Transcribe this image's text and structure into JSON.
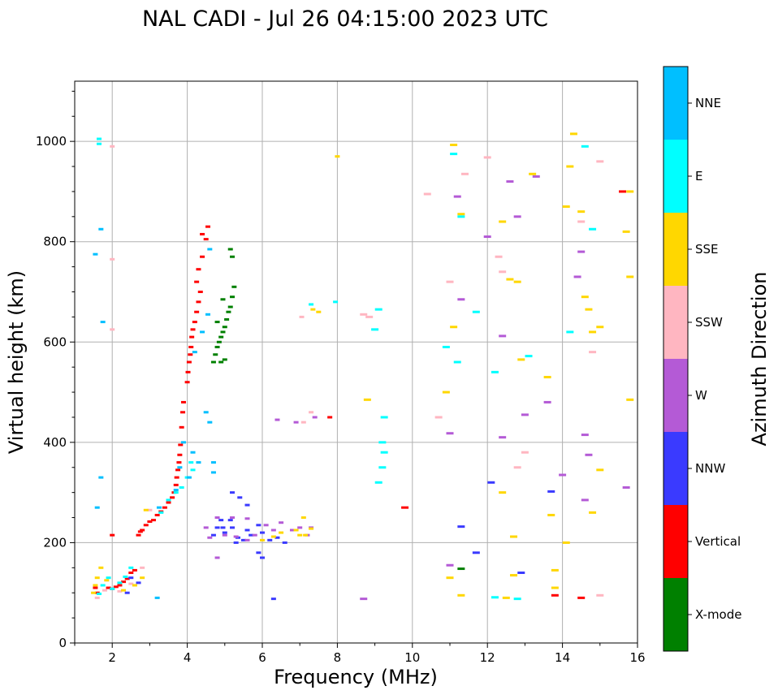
{
  "chart_data": {
    "type": "scatter",
    "title": "NAL CADI - Jul 26 04:15:00 2023 UTC",
    "xlabel": "Frequency (MHz)",
    "ylabel": "Virtual height (km)",
    "xlim": [
      1,
      16
    ],
    "ylim": [
      0,
      1120
    ],
    "xticks": [
      "2",
      "4",
      "6",
      "8",
      "10",
      "12",
      "14",
      "16"
    ],
    "yticks": [
      "0",
      "200",
      "400",
      "600",
      "800",
      "1000"
    ],
    "grid": true,
    "colorbar": {
      "label": "Azimuth Direction",
      "position": "right",
      "categories": [
        {
          "name": "X-mode",
          "color": "#008000"
        },
        {
          "name": "Vertical",
          "color": "#ff0000"
        },
        {
          "name": "NNW",
          "color": "#3a3aff"
        },
        {
          "name": "W",
          "color": "#b45ad6"
        },
        {
          "name": "SSW",
          "color": "#ffb6c1"
        },
        {
          "name": "SSE",
          "color": "#ffd700"
        },
        {
          "name": "E",
          "color": "#00ffff"
        },
        {
          "name": "NNE",
          "color": "#00bfff"
        }
      ]
    },
    "series": [
      {
        "name": "Vertical",
        "points": [
          [
            1.55,
            110
          ],
          [
            1.6,
            100
          ],
          [
            1.9,
            110
          ],
          [
            2.0,
            108
          ],
          [
            2.1,
            112
          ],
          [
            2.2,
            115
          ],
          [
            2.3,
            122
          ],
          [
            2.4,
            128
          ],
          [
            2.5,
            140
          ],
          [
            2.6,
            145
          ],
          [
            2.7,
            215
          ],
          [
            2.75,
            222
          ],
          [
            2.8,
            225
          ],
          [
            2.9,
            235
          ],
          [
            3.0,
            242
          ],
          [
            3.1,
            245
          ],
          [
            3.2,
            255
          ],
          [
            3.3,
            262
          ],
          [
            3.4,
            270
          ],
          [
            3.5,
            280
          ],
          [
            3.6,
            290
          ],
          [
            3.65,
            300
          ],
          [
            3.7,
            315
          ],
          [
            3.72,
            330
          ],
          [
            3.75,
            345
          ],
          [
            3.78,
            360
          ],
          [
            3.8,
            375
          ],
          [
            3.82,
            395
          ],
          [
            3.85,
            430
          ],
          [
            3.88,
            460
          ],
          [
            3.9,
            480
          ],
          [
            4.0,
            520
          ],
          [
            4.02,
            540
          ],
          [
            4.05,
            560
          ],
          [
            4.08,
            575
          ],
          [
            4.1,
            590
          ],
          [
            4.12,
            610
          ],
          [
            4.15,
            625
          ],
          [
            4.2,
            640
          ],
          [
            4.25,
            660
          ],
          [
            4.3,
            680
          ],
          [
            4.35,
            700
          ],
          [
            4.25,
            720
          ],
          [
            4.3,
            745
          ],
          [
            4.4,
            770
          ],
          [
            4.5,
            805
          ],
          [
            4.4,
            815
          ],
          [
            4.55,
            830
          ],
          [
            2.0,
            215
          ],
          [
            7.8,
            450
          ],
          [
            9.8,
            270
          ],
          [
            15.6,
            900
          ],
          [
            14.5,
            90
          ],
          [
            13.8,
            95
          ]
        ]
      },
      {
        "name": "X-mode",
        "points": [
          [
            4.7,
            560
          ],
          [
            4.75,
            575
          ],
          [
            4.8,
            590
          ],
          [
            4.85,
            600
          ],
          [
            4.9,
            610
          ],
          [
            4.95,
            620
          ],
          [
            5.0,
            630
          ],
          [
            5.05,
            645
          ],
          [
            5.1,
            660
          ],
          [
            5.15,
            670
          ],
          [
            5.2,
            690
          ],
          [
            5.25,
            710
          ],
          [
            5.2,
            770
          ],
          [
            5.15,
            785
          ],
          [
            4.95,
            685
          ],
          [
            4.8,
            640
          ],
          [
            5.0,
            565
          ],
          [
            4.9,
            560
          ],
          [
            11.3,
            148
          ]
        ]
      },
      {
        "name": "NNW",
        "points": [
          [
            4.7,
            215
          ],
          [
            4.8,
            230
          ],
          [
            4.9,
            245
          ],
          [
            5.0,
            220
          ],
          [
            5.2,
            230
          ],
          [
            5.35,
            210
          ],
          [
            5.5,
            205
          ],
          [
            5.6,
            225
          ],
          [
            5.7,
            215
          ],
          [
            5.9,
            235
          ],
          [
            6.0,
            220
          ],
          [
            6.2,
            205
          ],
          [
            6.4,
            210
          ],
          [
            6.6,
            200
          ],
          [
            5.2,
            300
          ],
          [
            5.4,
            290
          ],
          [
            5.6,
            275
          ],
          [
            5.9,
            180
          ],
          [
            6.0,
            170
          ],
          [
            5.15,
            245
          ],
          [
            4.95,
            230
          ],
          [
            5.3,
            200
          ],
          [
            6.3,
            88
          ],
          [
            11.3,
            232
          ],
          [
            11.7,
            180
          ],
          [
            12.1,
            320
          ],
          [
            12.9,
            140
          ],
          [
            13.7,
            302
          ],
          [
            2.4,
            100
          ],
          [
            2.7,
            120
          ],
          [
            2.5,
            130
          ]
        ]
      },
      {
        "name": "W",
        "points": [
          [
            4.5,
            230
          ],
          [
            4.6,
            210
          ],
          [
            4.8,
            170
          ],
          [
            5.0,
            215
          ],
          [
            5.3,
            212
          ],
          [
            5.6,
            205
          ],
          [
            5.8,
            215
          ],
          [
            6.1,
            235
          ],
          [
            6.3,
            225
          ],
          [
            6.5,
            240
          ],
          [
            6.8,
            225
          ],
          [
            7.0,
            230
          ],
          [
            7.2,
            215
          ],
          [
            7.3,
            230
          ],
          [
            4.8,
            250
          ],
          [
            5.2,
            250
          ],
          [
            5.6,
            248
          ],
          [
            6.9,
            440
          ],
          [
            7.4,
            450
          ],
          [
            6.4,
            445
          ],
          [
            8.7,
            88
          ],
          [
            11.2,
            890
          ],
          [
            11.3,
            685
          ],
          [
            11.0,
            155
          ],
          [
            12.0,
            810
          ],
          [
            12.4,
            612
          ],
          [
            12.6,
            920
          ],
          [
            12.8,
            850
          ],
          [
            13.3,
            930
          ],
          [
            13.6,
            480
          ],
          [
            14.0,
            335
          ],
          [
            14.4,
            730
          ],
          [
            14.5,
            780
          ],
          [
            14.7,
            375
          ],
          [
            14.6,
            285
          ],
          [
            15.7,
            310
          ],
          [
            13.0,
            455
          ],
          [
            11.0,
            418
          ],
          [
            12.4,
            410
          ],
          [
            14.6,
            415
          ]
        ]
      },
      {
        "name": "SSW",
        "points": [
          [
            1.6,
            90
          ],
          [
            1.8,
            105
          ],
          [
            2.2,
            103
          ],
          [
            2.5,
            118
          ],
          [
            2.8,
            150
          ],
          [
            3.0,
            265
          ],
          [
            7.1,
            440
          ],
          [
            7.3,
            460
          ],
          [
            8.7,
            655
          ],
          [
            8.85,
            650
          ],
          [
            7.05,
            650
          ],
          [
            10.7,
            450
          ],
          [
            10.4,
            895
          ],
          [
            11.4,
            935
          ],
          [
            12.3,
            770
          ],
          [
            12.4,
            740
          ],
          [
            12.0,
            968
          ],
          [
            14.5,
            840
          ],
          [
            14.8,
            580
          ],
          [
            15.0,
            960
          ],
          [
            15.0,
            95
          ],
          [
            13.0,
            380
          ],
          [
            12.8,
            350
          ],
          [
            11.0,
            720
          ],
          [
            2.0,
            625
          ],
          [
            2.0,
            765
          ],
          [
            2.0,
            990
          ]
        ]
      },
      {
        "name": "SSE",
        "points": [
          [
            1.5,
            100
          ],
          [
            1.55,
            115
          ],
          [
            1.6,
            130
          ],
          [
            1.7,
            150
          ],
          [
            1.85,
            125
          ],
          [
            2.3,
            105
          ],
          [
            2.6,
            115
          ],
          [
            2.8,
            130
          ],
          [
            2.9,
            265
          ],
          [
            6.0,
            205
          ],
          [
            6.3,
            212
          ],
          [
            6.5,
            220
          ],
          [
            6.9,
            225
          ],
          [
            7.0,
            215
          ],
          [
            7.15,
            215
          ],
          [
            7.3,
            228
          ],
          [
            7.1,
            250
          ],
          [
            7.35,
            665
          ],
          [
            7.5,
            660
          ],
          [
            8.0,
            970
          ],
          [
            8.8,
            485
          ],
          [
            11.1,
            993
          ],
          [
            11.3,
            855
          ],
          [
            11.1,
            630
          ],
          [
            12.4,
            840
          ],
          [
            12.6,
            725
          ],
          [
            12.8,
            720
          ],
          [
            12.9,
            565
          ],
          [
            13.2,
            935
          ],
          [
            14.1,
            870
          ],
          [
            14.2,
            950
          ],
          [
            14.3,
            1015
          ],
          [
            14.5,
            860
          ],
          [
            14.6,
            690
          ],
          [
            14.7,
            665
          ],
          [
            14.8,
            620
          ],
          [
            15.0,
            630
          ],
          [
            15.7,
            820
          ],
          [
            15.8,
            900
          ],
          [
            15.8,
            730
          ],
          [
            15.8,
            485
          ],
          [
            13.8,
            145
          ],
          [
            13.8,
            110
          ],
          [
            12.7,
            135
          ],
          [
            12.7,
            212
          ],
          [
            12.4,
            300
          ],
          [
            13.6,
            530
          ],
          [
            14.1,
            200
          ],
          [
            14.8,
            260
          ],
          [
            15.0,
            345
          ],
          [
            11.0,
            130
          ],
          [
            11.3,
            95
          ],
          [
            12.5,
            90
          ],
          [
            13.7,
            255
          ],
          [
            10.9,
            500
          ]
        ]
      },
      {
        "name": "E",
        "points": [
          [
            1.65,
            98
          ],
          [
            1.75,
            115
          ],
          [
            1.9,
            130
          ],
          [
            2.0,
            108
          ],
          [
            2.2,
            120
          ],
          [
            2.35,
            132
          ],
          [
            2.5,
            150
          ],
          [
            3.3,
            260
          ],
          [
            3.5,
            285
          ],
          [
            3.7,
            300
          ],
          [
            3.85,
            310
          ],
          [
            4.0,
            330
          ],
          [
            4.15,
            345
          ],
          [
            4.1,
            360
          ],
          [
            9.1,
            320
          ],
          [
            9.2,
            350
          ],
          [
            9.25,
            380
          ],
          [
            9.2,
            400
          ],
          [
            9.25,
            450
          ],
          [
            9.0,
            625
          ],
          [
            9.1,
            665
          ],
          [
            11.1,
            975
          ],
          [
            11.3,
            850
          ],
          [
            10.9,
            590
          ],
          [
            11.2,
            560
          ],
          [
            11.7,
            660
          ],
          [
            12.2,
            540
          ],
          [
            12.2,
            91
          ],
          [
            12.8,
            88
          ],
          [
            13.1,
            572
          ],
          [
            14.2,
            620
          ],
          [
            14.6,
            990
          ],
          [
            14.8,
            825
          ],
          [
            7.3,
            675
          ],
          [
            7.95,
            680
          ],
          [
            1.65,
            995
          ],
          [
            1.65,
            1005
          ]
        ]
      },
      {
        "name": "NNE",
        "points": [
          [
            1.55,
            775
          ],
          [
            1.7,
            825
          ],
          [
            1.75,
            640
          ],
          [
            1.7,
            330
          ],
          [
            1.6,
            270
          ],
          [
            3.25,
            270
          ],
          [
            3.7,
            305
          ],
          [
            3.8,
            350
          ],
          [
            3.9,
            400
          ],
          [
            4.05,
            330
          ],
          [
            4.15,
            380
          ],
          [
            4.3,
            360
          ],
          [
            4.55,
            655
          ],
          [
            4.6,
            785
          ],
          [
            4.4,
            620
          ],
          [
            4.2,
            580
          ],
          [
            4.5,
            460
          ],
          [
            4.6,
            440
          ],
          [
            3.2,
            90
          ],
          [
            4.7,
            360
          ],
          [
            4.7,
            340
          ]
        ]
      }
    ]
  }
}
